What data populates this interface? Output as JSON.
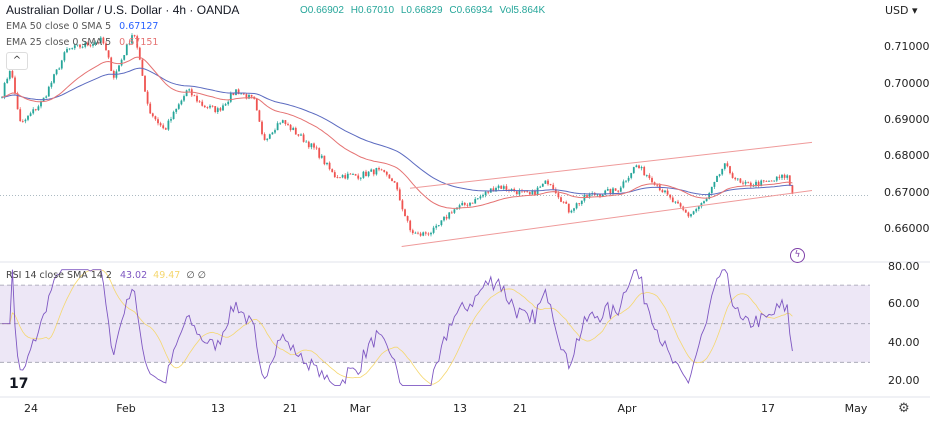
{
  "header": {
    "title": "Australian Dollar / U.S. Dollar · 4h · OANDA",
    "ohlc": {
      "open": "O0.66902",
      "high": "H0.67010",
      "low": "L0.66829",
      "close": "C0.66934",
      "volume": "Vol5.864K"
    },
    "ema50": {
      "label": "EMA 50 close 0 SMA 5",
      "value": "0.67127"
    },
    "ema25": {
      "label": "EMA 25 close 0 SMA 5",
      "value": "0.67151"
    },
    "currency": "USD"
  },
  "rsi_legend": {
    "label": "RSI 14 close SMA 14 2",
    "value": "43.02",
    "sma": "49.47",
    "extra": "∅ ∅"
  },
  "price_axis": [
    "0.71000",
    "0.70000",
    "0.69000",
    "0.68000",
    "0.67000",
    "0.66000"
  ],
  "rsi_axis": [
    "80.00",
    "60.00",
    "40.00",
    "20.00"
  ],
  "time_axis": [
    "24",
    "Feb",
    "13",
    "21",
    "Mar",
    "13",
    "21",
    "Apr",
    "17",
    "May"
  ],
  "colors": {
    "up": "#26a69a",
    "down": "#ef5350",
    "ema50": "#5c6bc0",
    "ema25": "#e57373",
    "rsi": "#7e57c2",
    "rsi_sma": "#f5d76e",
    "channel": "#ef9a9a",
    "rsi_band": "#ede7f6"
  },
  "icons": {
    "collapse": "chevron-up-icon",
    "logo": "tradingview-logo",
    "alert": "lightning-icon",
    "settings": "gear-icon"
  },
  "chart_data": {
    "type": "candlestick",
    "symbol": "AUD/USD",
    "interval": "4h",
    "ylim": [
      0.654,
      0.716
    ],
    "rsi_ylim": [
      16,
      82
    ],
    "rsi_bands": [
      30,
      50,
      70
    ],
    "last_price": 0.66934,
    "close_path": [
      [
        "2023-01-21",
        0.6954
      ],
      [
        "2023-01-22",
        0.7045
      ],
      [
        "2023-01-23",
        0.6886
      ],
      [
        "2023-01-25",
        0.6954
      ],
      [
        "2023-01-27",
        0.7092
      ],
      [
        "2023-01-30",
        0.712
      ],
      [
        "2023-01-31",
        0.7018
      ],
      [
        "2023-02-02",
        0.7147
      ],
      [
        "2023-02-04",
        0.6927
      ],
      [
        "2023-02-06",
        0.6872
      ],
      [
        "2023-02-09",
        0.6982
      ],
      [
        "2023-02-11",
        0.6941
      ],
      [
        "2023-02-13",
        0.6927
      ],
      [
        "2023-02-15",
        0.6982
      ],
      [
        "2023-02-17",
        0.6954
      ],
      [
        "2023-02-18",
        0.6845
      ],
      [
        "2023-02-20",
        0.69
      ],
      [
        "2023-02-22",
        0.6859
      ],
      [
        "2023-02-24",
        0.6817
      ],
      [
        "2023-02-26",
        0.6748
      ],
      [
        "2023-03-01",
        0.6748
      ],
      [
        "2023-03-03",
        0.6762
      ],
      [
        "2023-03-05",
        0.6735
      ],
      [
        "2023-03-07",
        0.6597
      ],
      [
        "2023-03-08",
        0.6584
      ],
      [
        "2023-03-10",
        0.6597
      ],
      [
        "2023-03-12",
        0.6652
      ],
      [
        "2023-03-15",
        0.668
      ],
      [
        "2023-03-18",
        0.672
      ],
      [
        "2023-03-22",
        0.6693
      ],
      [
        "2023-03-24",
        0.6735
      ],
      [
        "2023-03-26",
        0.6652
      ],
      [
        "2023-03-28",
        0.6693
      ],
      [
        "2023-03-31",
        0.6707
      ],
      [
        "2023-04-02",
        0.6776
      ],
      [
        "2023-04-04",
        0.6735
      ],
      [
        "2023-04-06",
        0.668
      ],
      [
        "2023-04-08",
        0.6638
      ],
      [
        "2023-04-10",
        0.668
      ],
      [
        "2023-04-12",
        0.6776
      ],
      [
        "2023-04-14",
        0.6721
      ],
      [
        "2023-04-17",
        0.6729
      ],
      [
        "2023-04-20",
        0.6748
      ],
      [
        "2023-04-21",
        0.6693
      ]
    ],
    "channel": {
      "upper": [
        [
          "2023-03-07",
          0.6713
        ],
        [
          "2023-04-24",
          0.6839
        ]
      ],
      "lower": [
        [
          "2023-03-06",
          0.6553
        ],
        [
          "2023-04-24",
          0.6707
        ]
      ]
    }
  }
}
